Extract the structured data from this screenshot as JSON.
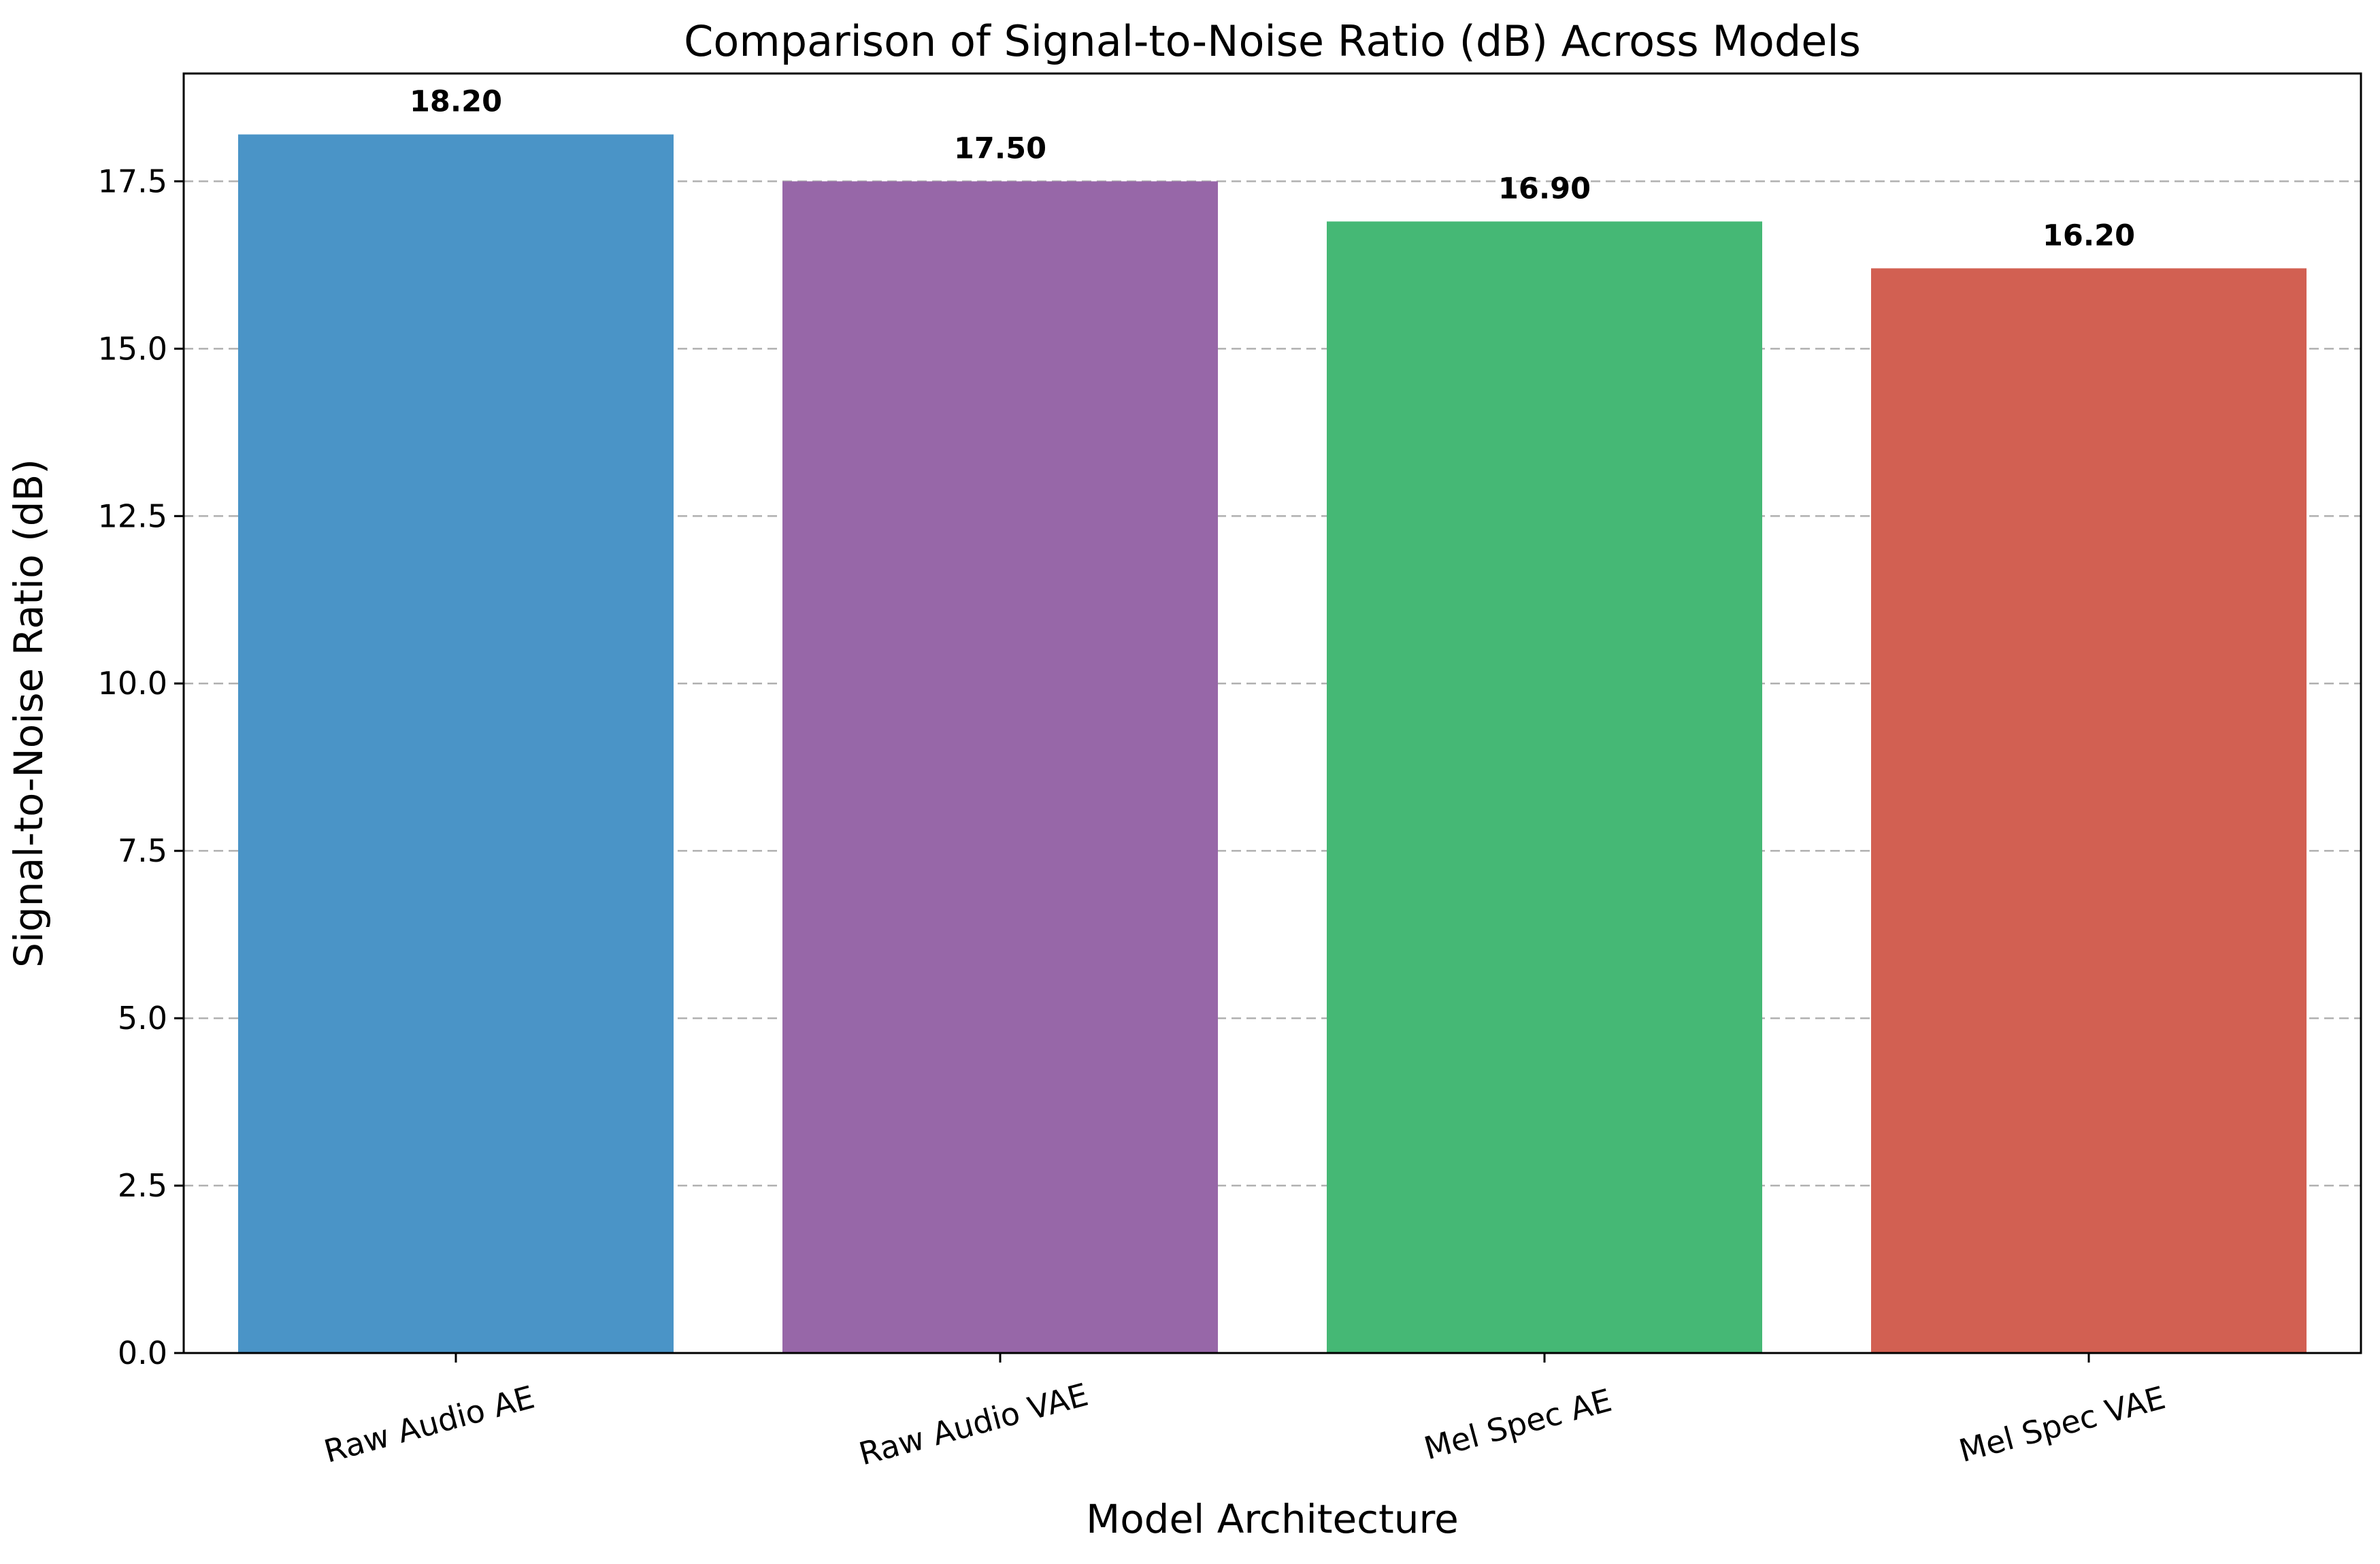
{
  "chart_data": {
    "type": "bar",
    "title": "Comparison of Signal-to-Noise Ratio (dB) Across Models",
    "xlabel": "Model Architecture",
    "ylabel": "Signal-to-Noise Ratio (dB)",
    "categories": [
      "Raw Audio AE",
      "Raw Audio VAE",
      "Mel Spec AE",
      "Mel Spec VAE"
    ],
    "values": [
      18.2,
      17.5,
      16.9,
      16.2
    ],
    "value_labels": [
      "18.20",
      "17.50",
      "16.90",
      "16.20"
    ],
    "colors": [
      "#4a94c7",
      "#9767a8",
      "#45b875",
      "#d26052"
    ],
    "ylim": [
      0,
      19.11
    ],
    "yticks": [
      0.0,
      2.5,
      5.0,
      7.5,
      10.0,
      12.5,
      15.0,
      17.5
    ],
    "ytick_labels": [
      "0.0",
      "2.5",
      "5.0",
      "7.5",
      "10.0",
      "12.5",
      "15.0",
      "17.5"
    ],
    "grid": "y-dashed",
    "legend": "none",
    "xtick_rotation": -15
  }
}
